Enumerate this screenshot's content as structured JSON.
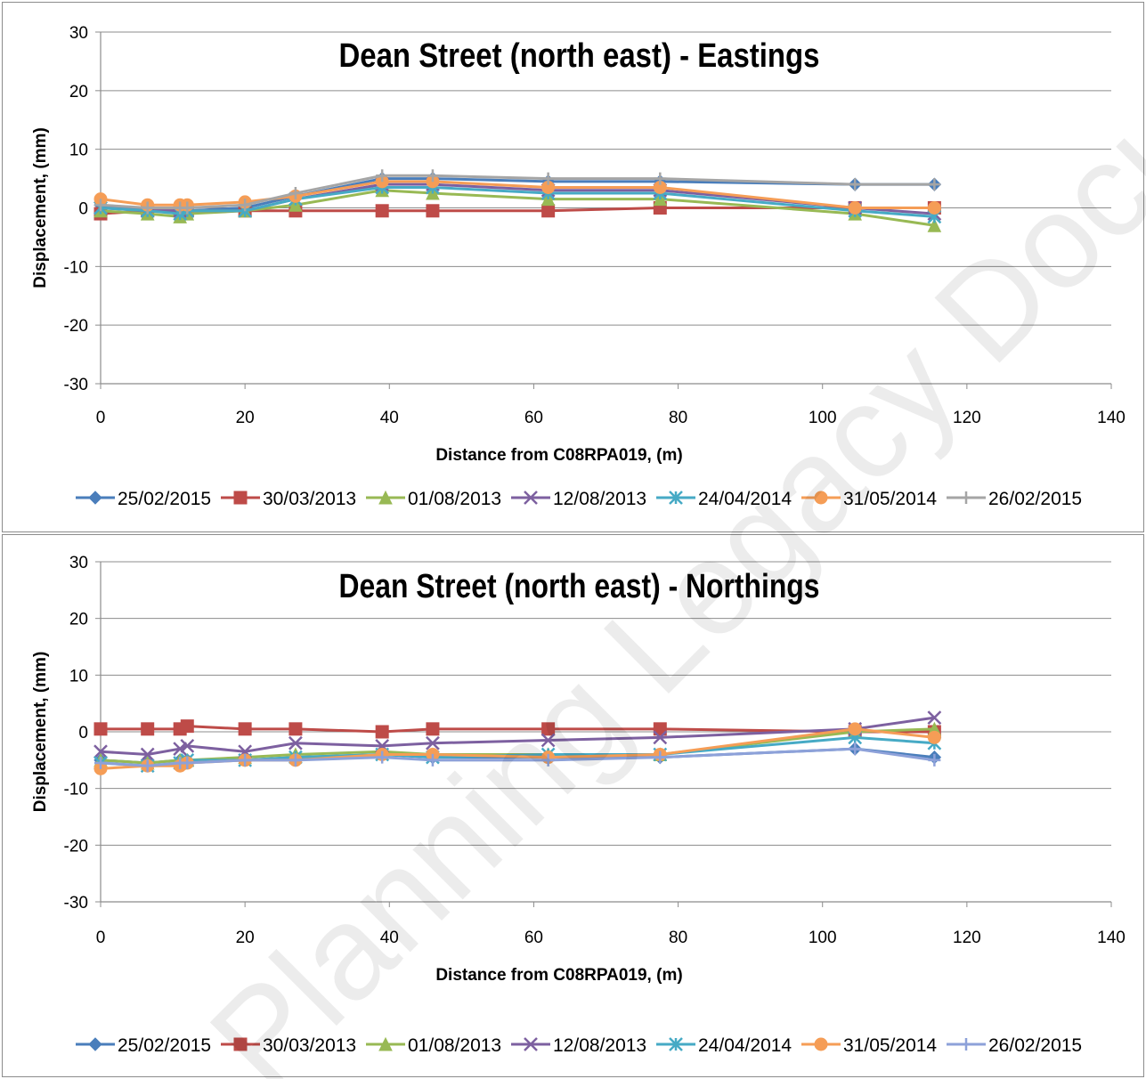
{
  "watermark": "Planning Legacy Document",
  "chart_data": [
    {
      "type": "line",
      "title": "Dean Street (north east) - Eastings",
      "xlabel": "Distance from C08RPA019, (m)",
      "ylabel": "Displacement, (mm)",
      "xlim": [
        0,
        140
      ],
      "ylim": [
        -30,
        30
      ],
      "xticks": [
        0,
        20,
        40,
        60,
        80,
        100,
        120,
        140
      ],
      "yticks": [
        30,
        20,
        10,
        0,
        -10,
        -20,
        -30
      ],
      "grid": "horizontal",
      "legend_position": "bottom",
      "series": [
        {
          "name": "25/02/2015",
          "color": "#4a7ebb",
          "marker": "diamond",
          "x": [
            0,
            6.5,
            11,
            12,
            20,
            27,
            39,
            46,
            62,
            77.5,
            104.5,
            115.5
          ],
          "y": [
            0.5,
            -0.5,
            -0.5,
            -0.5,
            0,
            2,
            5,
            5,
            4.5,
            4.5,
            4,
            4
          ]
        },
        {
          "name": "30/03/2013",
          "color": "#be4b48",
          "marker": "square",
          "x": [
            0,
            6.5,
            11,
            12,
            20,
            27,
            39,
            46,
            62,
            77.5,
            104.5,
            115.5
          ],
          "y": [
            -1,
            -0.5,
            -0.5,
            -0.5,
            -0.5,
            -0.5,
            -0.5,
            -0.5,
            -0.5,
            0,
            0,
            0
          ]
        },
        {
          "name": "01/08/2013",
          "color": "#98b954",
          "marker": "triangle",
          "x": [
            0,
            6.5,
            11,
            12,
            20,
            27,
            39,
            46,
            62,
            77.5,
            104.5,
            115.5
          ],
          "y": [
            -0.5,
            -1,
            -1.5,
            -1,
            -0.5,
            0.5,
            3,
            2.5,
            1.5,
            1.5,
            -1,
            -3
          ]
        },
        {
          "name": "12/08/2013",
          "color": "#7d60a0",
          "marker": "x",
          "x": [
            0,
            6.5,
            11,
            12,
            20,
            27,
            39,
            46,
            62,
            77.5,
            104.5,
            115.5
          ],
          "y": [
            0,
            -0.5,
            -0.5,
            -0.5,
            -0.5,
            1.5,
            4,
            4,
            3,
            3,
            0,
            -1
          ]
        },
        {
          "name": "24/04/2014",
          "color": "#46aac5",
          "marker": "star",
          "x": [
            0,
            6.5,
            11,
            12,
            20,
            27,
            39,
            46,
            62,
            77.5,
            104.5,
            115.5
          ],
          "y": [
            0,
            -0.5,
            -1,
            -0.5,
            -0.5,
            1.5,
            3.5,
            3.5,
            2.5,
            2.5,
            -0.5,
            -1.5
          ]
        },
        {
          "name": "31/05/2014",
          "color": "#f59d56",
          "marker": "circle",
          "x": [
            0,
            6.5,
            11,
            12,
            20,
            27,
            39,
            46,
            62,
            77.5,
            104.5,
            115.5
          ],
          "y": [
            1.5,
            0.5,
            0.5,
            0.5,
            1,
            2,
            4.5,
            4.5,
            3.5,
            3.5,
            0,
            0
          ]
        },
        {
          "name": "26/02/2015",
          "color": "#a5a5a5",
          "marker": "plus",
          "x": [
            0,
            6.5,
            11,
            12,
            20,
            27,
            39,
            46,
            62,
            77.5,
            104.5,
            115.5
          ],
          "y": [
            0.5,
            0,
            0,
            0,
            0.5,
            2.5,
            5.5,
            5.5,
            5,
            5,
            4,
            4
          ]
        }
      ]
    },
    {
      "type": "line",
      "title": "Dean Street (north east) - Northings",
      "xlabel": "Distance from C08RPA019, (m)",
      "ylabel": "Displacement, (mm)",
      "xlim": [
        0,
        140
      ],
      "ylim": [
        -30,
        30
      ],
      "xticks": [
        0,
        20,
        40,
        60,
        80,
        100,
        120,
        140
      ],
      "yticks": [
        30,
        20,
        10,
        0,
        -10,
        -20,
        -30
      ],
      "grid": "horizontal",
      "legend_position": "bottom",
      "series": [
        {
          "name": "25/02/2015",
          "color": "#4a7ebb",
          "marker": "diamond",
          "x": [
            0,
            6.5,
            11,
            12,
            20,
            27,
            39,
            46,
            62,
            77.5,
            104.5,
            115.5
          ],
          "y": [
            -5,
            -5.5,
            -5,
            -5,
            -5,
            -4.5,
            -4,
            -4.5,
            -4.5,
            -4.5,
            -3,
            -4.5
          ]
        },
        {
          "name": "30/03/2013",
          "color": "#be4b48",
          "marker": "square",
          "x": [
            0,
            6.5,
            11,
            12,
            20,
            27,
            39,
            46,
            62,
            77.5,
            104.5,
            115.5
          ],
          "y": [
            0.5,
            0.5,
            0.5,
            1,
            0.5,
            0.5,
            0,
            0.5,
            0.5,
            0.5,
            0,
            0
          ]
        },
        {
          "name": "01/08/2013",
          "color": "#98b954",
          "marker": "triangle",
          "x": [
            0,
            6.5,
            11,
            12,
            20,
            27,
            39,
            46,
            62,
            77.5,
            104.5,
            115.5
          ],
          "y": [
            -5,
            -5.5,
            -5,
            -5,
            -4.5,
            -4,
            -3.5,
            -4,
            -4,
            -4,
            0,
            0.5
          ]
        },
        {
          "name": "12/08/2013",
          "color": "#7d60a0",
          "marker": "x",
          "x": [
            0,
            6.5,
            11,
            12,
            20,
            27,
            39,
            46,
            62,
            77.5,
            104.5,
            115.5
          ],
          "y": [
            -3.5,
            -4,
            -3,
            -2.5,
            -3.5,
            -2,
            -2.5,
            -2,
            -1.5,
            -1,
            0.5,
            2.5
          ]
        },
        {
          "name": "24/04/2014",
          "color": "#46aac5",
          "marker": "star",
          "x": [
            0,
            6.5,
            11,
            12,
            20,
            27,
            39,
            46,
            62,
            77.5,
            104.5,
            115.5
          ],
          "y": [
            -5.5,
            -6,
            -5.5,
            -5,
            -5,
            -4.5,
            -4,
            -4.5,
            -4,
            -4,
            -1,
            -2
          ]
        },
        {
          "name": "31/05/2014",
          "color": "#f59d56",
          "marker": "circle",
          "x": [
            0,
            6.5,
            11,
            12,
            20,
            27,
            39,
            46,
            62,
            77.5,
            104.5,
            115.5
          ],
          "y": [
            -6.5,
            -6,
            -6,
            -5.5,
            -5,
            -5,
            -4,
            -4,
            -4.5,
            -4,
            0.5,
            -1
          ]
        },
        {
          "name": "26/02/2015",
          "color": "#8da1d9",
          "marker": "plus",
          "x": [
            0,
            6.5,
            11,
            12,
            20,
            27,
            39,
            46,
            62,
            77.5,
            104.5,
            115.5
          ],
          "y": [
            -5.5,
            -6,
            -5.5,
            -5.5,
            -5,
            -5,
            -4.5,
            -5,
            -5,
            -4.5,
            -3,
            -5
          ]
        }
      ]
    }
  ]
}
